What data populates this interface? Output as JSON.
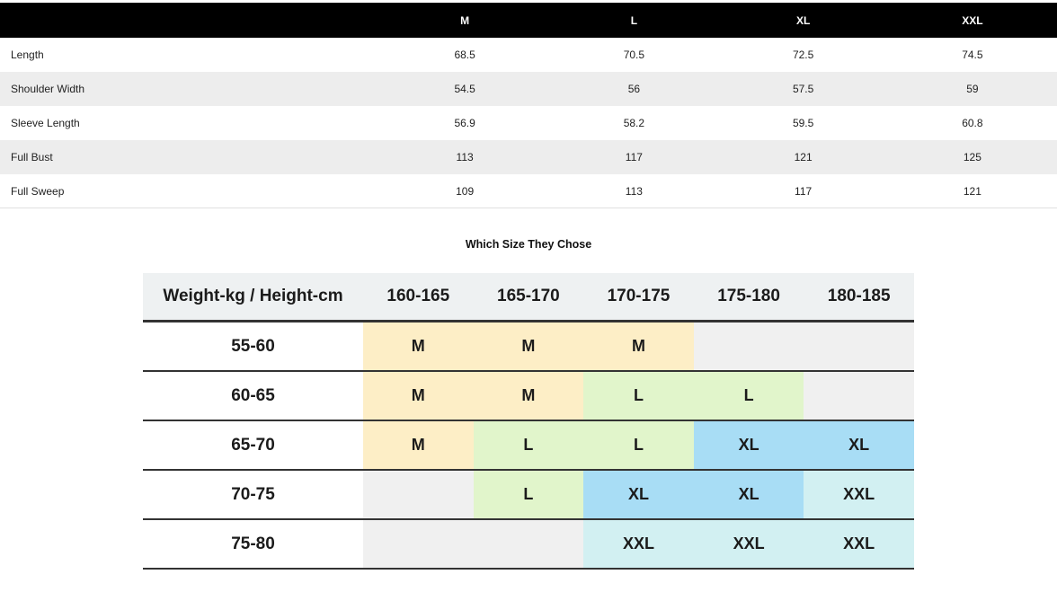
{
  "measurement_table": {
    "columns": [
      "M",
      "L",
      "XL",
      "XXL"
    ],
    "rows": [
      {
        "label": "Length",
        "values": [
          "68.5",
          "70.5",
          "72.5",
          "74.5"
        ]
      },
      {
        "label": "Shoulder Width",
        "values": [
          "54.5",
          "56",
          "57.5",
          "59"
        ]
      },
      {
        "label": "Sleeve Length",
        "values": [
          "56.9",
          "58.2",
          "59.5",
          "60.8"
        ]
      },
      {
        "label": "Full Bust",
        "values": [
          "113",
          "117",
          "121",
          "125"
        ]
      },
      {
        "label": "Full Sweep",
        "values": [
          "109",
          "113",
          "117",
          "121"
        ]
      }
    ]
  },
  "size_chart": {
    "title": "Which Size They Chose",
    "corner_header": "Weight-kg / Height-cm",
    "height_columns": [
      "160-165",
      "165-170",
      "170-175",
      "175-180",
      "180-185"
    ],
    "rows": [
      {
        "weight": "55-60",
        "cells": [
          "M",
          "M",
          "M",
          "",
          ""
        ]
      },
      {
        "weight": "60-65",
        "cells": [
          "M",
          "M",
          "L",
          "L",
          ""
        ]
      },
      {
        "weight": "65-70",
        "cells": [
          "M",
          "L",
          "L",
          "XL",
          "XL"
        ]
      },
      {
        "weight": "70-75",
        "cells": [
          "",
          "L",
          "XL",
          "XL",
          "XXL"
        ]
      },
      {
        "weight": "75-80",
        "cells": [
          "",
          "",
          "XXL",
          "XXL",
          "XXL"
        ]
      }
    ],
    "cell_colors": {
      "M": "#fdeec6",
      "L": "#e1f5cb",
      "XL": "#a8ddf5",
      "XXL": "#d2f0f2",
      "empty": "#f0f0f0"
    }
  },
  "colors": {
    "header_bar_bg": "#000000",
    "alt_row_bg": "#ededed",
    "size_header_bg": "#eef1f2",
    "rule_color": "#333333"
  }
}
